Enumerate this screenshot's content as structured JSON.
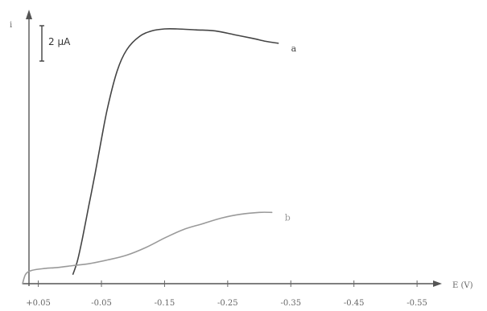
{
  "chart_data": {
    "type": "line",
    "title": "",
    "xlabel": "E (V)",
    "ylabel": "i",
    "x_ticks": [
      0.05,
      -0.05,
      -0.15,
      -0.25,
      -0.35,
      -0.45,
      -0.55
    ],
    "x_tick_labels": [
      "+0.05",
      "-0.05",
      "-0.15",
      "-0.25",
      "-0.35",
      "-0.45",
      "-0.55"
    ],
    "xlim": [
      0.075,
      -0.62
    ],
    "ylim": [
      0,
      14.5
    ],
    "y_unit": "µA",
    "scale_bar": {
      "label": "2 µA",
      "value": 2
    },
    "grid": false,
    "series": [
      {
        "name": "a",
        "color": "#444444",
        "points": [
          [
            -0.005,
            0.5
          ],
          [
            -0.012,
            1.2
          ],
          [
            -0.02,
            2.4
          ],
          [
            -0.03,
            4.1
          ],
          [
            -0.04,
            5.8
          ],
          [
            -0.05,
            7.6
          ],
          [
            -0.06,
            9.3
          ],
          [
            -0.075,
            11.2
          ],
          [
            -0.09,
            12.3
          ],
          [
            -0.11,
            13.0
          ],
          [
            -0.13,
            13.3
          ],
          [
            -0.15,
            13.4
          ],
          [
            -0.17,
            13.4
          ],
          [
            -0.2,
            13.35
          ],
          [
            -0.23,
            13.3
          ],
          [
            -0.26,
            13.1
          ],
          [
            -0.29,
            12.9
          ],
          [
            -0.31,
            12.75
          ],
          [
            -0.33,
            12.65
          ]
        ]
      },
      {
        "name": "b",
        "color": "#9a9a9a",
        "points": [
          [
            0.075,
            0.0
          ],
          [
            0.07,
            0.5
          ],
          [
            0.06,
            0.7
          ],
          [
            0.04,
            0.8
          ],
          [
            0.02,
            0.85
          ],
          [
            -0.005,
            0.95
          ],
          [
            -0.03,
            1.05
          ],
          [
            -0.06,
            1.25
          ],
          [
            -0.09,
            1.5
          ],
          [
            -0.12,
            1.9
          ],
          [
            -0.15,
            2.4
          ],
          [
            -0.18,
            2.85
          ],
          [
            -0.21,
            3.15
          ],
          [
            -0.24,
            3.45
          ],
          [
            -0.27,
            3.65
          ],
          [
            -0.3,
            3.75
          ],
          [
            -0.32,
            3.75
          ]
        ]
      }
    ]
  }
}
